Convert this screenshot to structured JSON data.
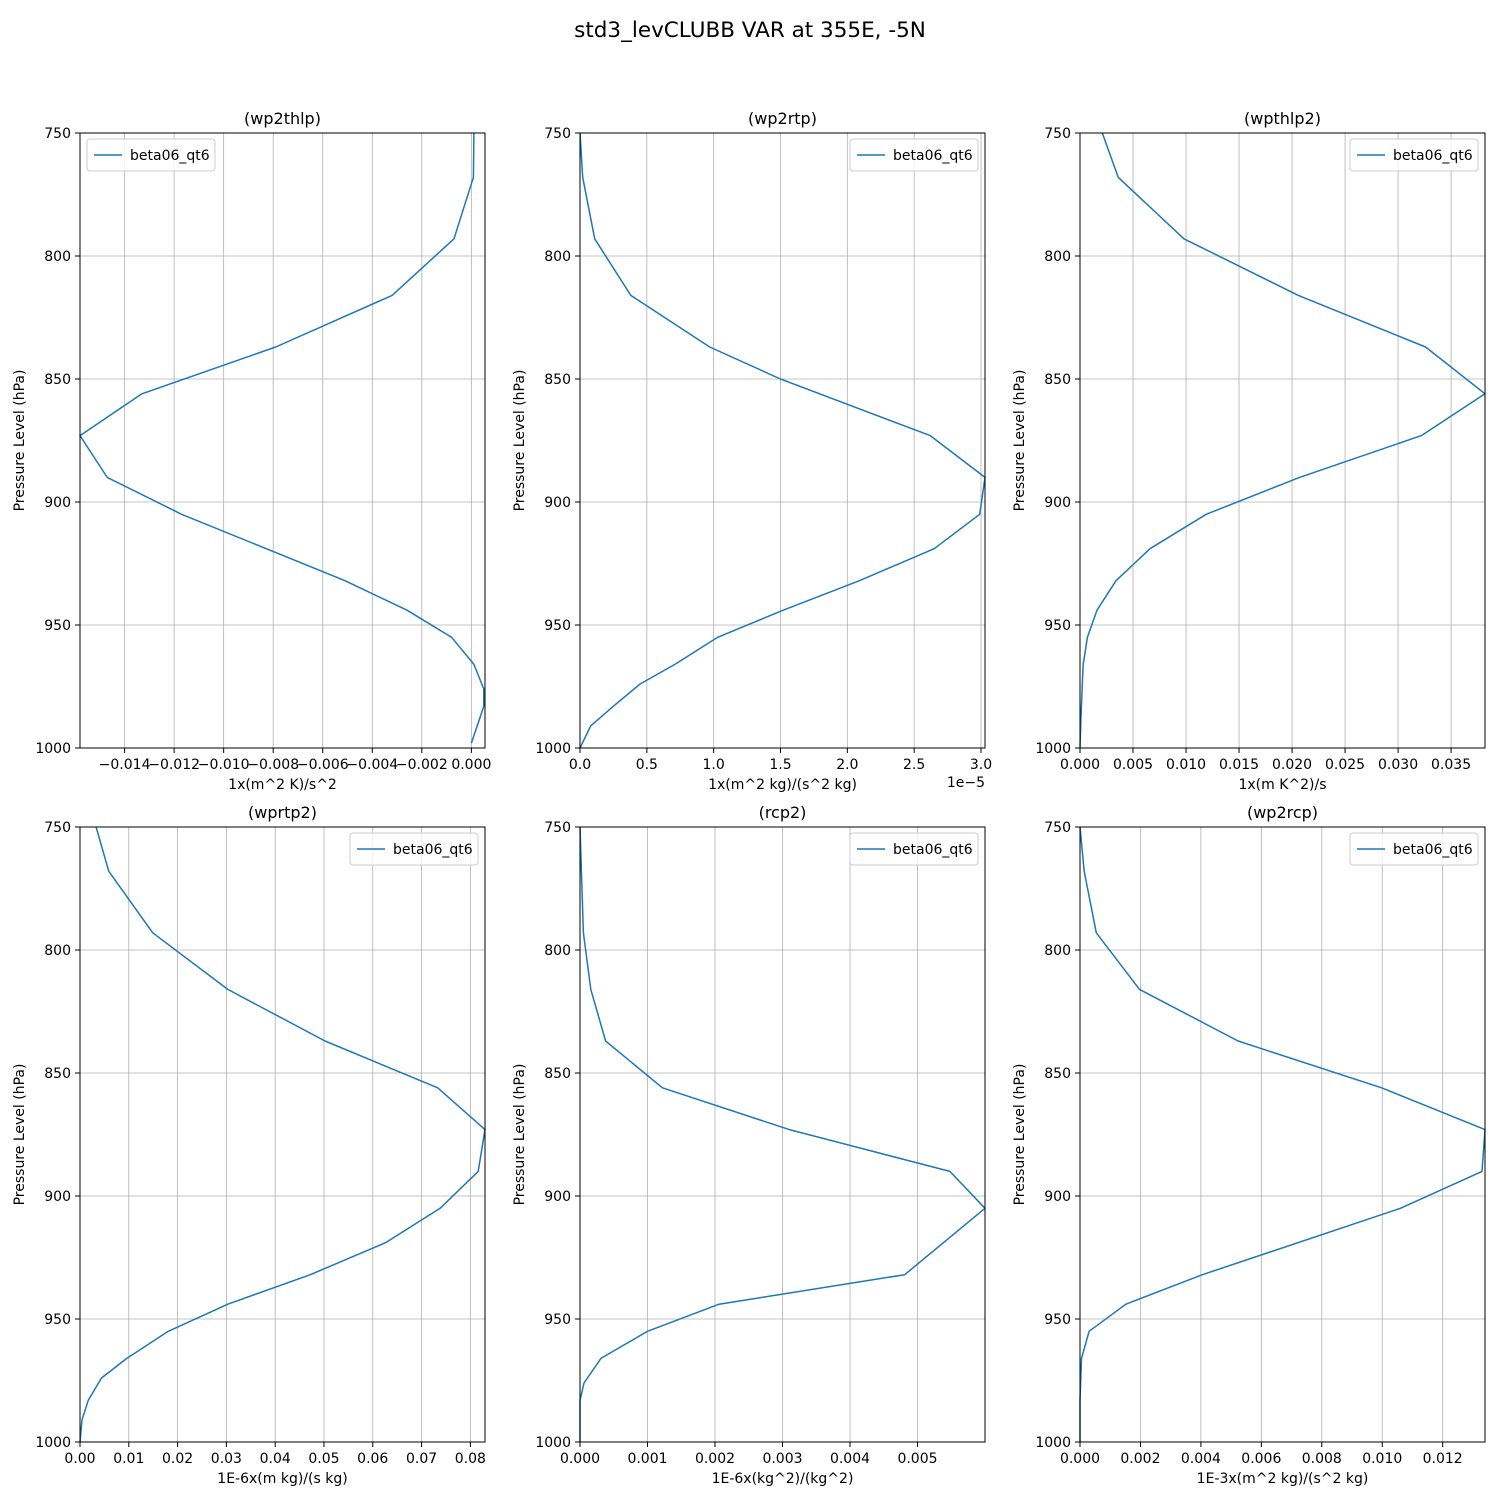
{
  "figure": {
    "suptitle": "std3_levCLUBB VAR at 355E, -5N"
  },
  "chart_data": [
    {
      "type": "line",
      "title": "(wp2thlp)",
      "xlabel": "1x(m^2 K)/s^2",
      "ylabel": "Pressure Level (hPa)",
      "xlim": [
        -0.0158,
        0.00055
      ],
      "ylim": [
        1000,
        750
      ],
      "x_offset_text": "",
      "legend": "upper left",
      "xticks": [
        -0.014,
        -0.012,
        -0.01,
        -0.008,
        -0.006,
        -0.004,
        -0.002,
        0.0
      ],
      "xtick_labels": [
        "−0.014",
        "−0.012",
        "−0.010",
        "−0.008",
        "−0.006",
        "−0.004",
        "−0.002",
        "0.000"
      ],
      "yticks": [
        750,
        800,
        850,
        900,
        950,
        1000
      ],
      "ytick_labels": [
        "750",
        "800",
        "850",
        "900",
        "950",
        "1000"
      ],
      "series": [
        {
          "name": "beta06_qt6",
          "x": [
            0.0001,
            8e-05,
            -0.0007,
            -0.0032,
            -0.0079,
            -0.0133,
            -0.0158,
            -0.0147,
            -0.0117,
            -0.0051,
            -0.0026,
            -0.0008,
            0.0001,
            0.0005,
            0.0005,
            0.0
          ],
          "y": [
            750,
            768,
            793,
            816,
            837,
            856,
            873,
            890,
            905,
            932,
            944,
            955,
            966,
            976,
            983,
            998
          ]
        }
      ]
    },
    {
      "type": "line",
      "title": "(wp2rtp)",
      "xlabel": "1x(m^2 kg)/(s^2 kg)",
      "ylabel": "Pressure Level (hPa)",
      "xlim": [
        0,
        3.03
      ],
      "ylim": [
        1000,
        750
      ],
      "x_offset_text": "1e−5",
      "legend": "upper right",
      "xticks": [
        0.0,
        0.5,
        1.0,
        1.5,
        2.0,
        2.5,
        3.0
      ],
      "xtick_labels": [
        "0.0",
        "0.5",
        "1.0",
        "1.5",
        "2.0",
        "2.5",
        "3.0"
      ],
      "yticks": [
        750,
        800,
        850,
        900,
        950,
        1000
      ],
      "ytick_labels": [
        "750",
        "800",
        "850",
        "900",
        "950",
        "1000"
      ],
      "series": [
        {
          "name": "beta06_qt6",
          "x": [
            0.0,
            0.02,
            0.11,
            0.38,
            0.97,
            1.5,
            2.62,
            3.03,
            2.99,
            2.65,
            2.09,
            1.52,
            1.03,
            0.71,
            0.45,
            0.25,
            0.08,
            0.0
          ],
          "y": [
            750,
            768,
            793,
            816,
            837,
            850,
            873,
            890,
            905,
            919,
            932,
            944,
            955,
            966,
            974,
            983,
            991,
            1000
          ]
        }
      ]
    },
    {
      "type": "line",
      "title": "(wpthlp2)",
      "xlabel": "1x(m K^2)/s",
      "ylabel": "Pressure Level (hPa)",
      "xlim": [
        0,
        0.0382
      ],
      "ylim": [
        1000,
        750
      ],
      "x_offset_text": "",
      "legend": "upper right",
      "xticks": [
        0.0,
        0.005,
        0.01,
        0.015,
        0.02,
        0.025,
        0.03,
        0.035
      ],
      "xtick_labels": [
        "0.000",
        "0.005",
        "0.010",
        "0.015",
        "0.020",
        "0.025",
        "0.030",
        "0.035"
      ],
      "yticks": [
        750,
        800,
        850,
        900,
        950,
        1000
      ],
      "ytick_labels": [
        "750",
        "800",
        "850",
        "900",
        "950",
        "1000"
      ],
      "series": [
        {
          "name": "beta06_qt6",
          "x": [
            0.0021,
            0.0036,
            0.0098,
            0.0206,
            0.0326,
            0.0382,
            0.0322,
            0.0207,
            0.0119,
            0.0066,
            0.0034,
            0.0016,
            0.0007,
            0.0003,
            0.0002,
            0.0001,
            0.0
          ],
          "y": [
            750,
            768,
            793,
            816,
            837,
            856,
            873,
            890,
            905,
            919,
            932,
            944,
            955,
            966,
            976,
            986,
            1000
          ]
        }
      ]
    },
    {
      "type": "line",
      "title": "(wprtp2)",
      "xlabel": "1E-6x(m kg)/(s kg)",
      "ylabel": "Pressure Level (hPa)",
      "xlim": [
        0,
        0.083
      ],
      "ylim": [
        1000,
        750
      ],
      "x_offset_text": "",
      "legend": "upper right",
      "xticks": [
        0.0,
        0.01,
        0.02,
        0.03,
        0.04,
        0.05,
        0.06,
        0.07,
        0.08
      ],
      "xtick_labels": [
        "0.00",
        "0.01",
        "0.02",
        "0.03",
        "0.04",
        "0.05",
        "0.06",
        "0.07",
        "0.08"
      ],
      "yticks": [
        750,
        800,
        850,
        900,
        950,
        1000
      ],
      "ytick_labels": [
        "750",
        "800",
        "850",
        "900",
        "950",
        "1000"
      ],
      "series": [
        {
          "name": "beta06_qt6",
          "x": [
            0.0033,
            0.0059,
            0.0149,
            0.0303,
            0.0502,
            0.0733,
            0.083,
            0.0816,
            0.0738,
            0.0626,
            0.0472,
            0.0303,
            0.0181,
            0.0096,
            0.0044,
            0.0017,
            0.0004,
            0.0
          ],
          "y": [
            750,
            768,
            793,
            816,
            837,
            856,
            873,
            890,
            905,
            919,
            932,
            944,
            955,
            966,
            974,
            983,
            991,
            1000
          ]
        }
      ]
    },
    {
      "type": "line",
      "title": "(rcp2)",
      "xlabel": "1E-6x(kg^2)/(kg^2)",
      "ylabel": "Pressure Level (hPa)",
      "xlim": [
        0,
        0.006
      ],
      "ylim": [
        1000,
        750
      ],
      "x_offset_text": "",
      "legend": "upper right",
      "xticks": [
        0.0,
        0.001,
        0.002,
        0.003,
        0.004,
        0.005
      ],
      "xtick_labels": [
        "0.000",
        "0.001",
        "0.002",
        "0.003",
        "0.004",
        "0.005"
      ],
      "yticks": [
        750,
        800,
        850,
        900,
        950,
        1000
      ],
      "ytick_labels": [
        "750",
        "800",
        "850",
        "900",
        "950",
        "1000"
      ],
      "series": [
        {
          "name": "beta06_qt6",
          "x": [
            0.0,
            2e-05,
            5e-05,
            0.00016,
            0.00038,
            0.00122,
            0.0031,
            0.00548,
            0.006,
            0.00481,
            0.00206,
            0.001,
            0.00031,
            6e-05,
            0.0,
            0.0
          ],
          "y": [
            750,
            768,
            793,
            816,
            837,
            856,
            873,
            890,
            905,
            932,
            944,
            955,
            966,
            976,
            983,
            1000
          ]
        }
      ]
    },
    {
      "type": "line",
      "title": "(wp2rcp)",
      "xlabel": "1E-3x(m^2 kg)/(s^2 kg)",
      "ylabel": "Pressure Level (hPa)",
      "xlim": [
        0,
        0.0134
      ],
      "ylim": [
        1000,
        750
      ],
      "x_offset_text": "",
      "legend": "upper right",
      "xticks": [
        0.0,
        0.002,
        0.004,
        0.006,
        0.008,
        0.01,
        0.012
      ],
      "xtick_labels": [
        "0.000",
        "0.002",
        "0.004",
        "0.006",
        "0.008",
        "0.010",
        "0.012"
      ],
      "yticks": [
        750,
        800,
        850,
        900,
        950,
        1000
      ],
      "ytick_labels": [
        "750",
        "800",
        "850",
        "900",
        "950",
        "1000"
      ],
      "series": [
        {
          "name": "beta06_qt6",
          "x": [
            0.0,
            0.00014,
            0.00054,
            0.00197,
            0.00523,
            0.00998,
            0.0134,
            0.0133,
            0.0106,
            0.00405,
            0.00152,
            0.0003,
            5e-05,
            0.0,
            0.0
          ],
          "y": [
            750,
            768,
            793,
            816,
            837,
            856,
            873,
            890,
            905,
            932,
            944,
            955,
            966,
            983,
            1000
          ]
        }
      ]
    }
  ]
}
